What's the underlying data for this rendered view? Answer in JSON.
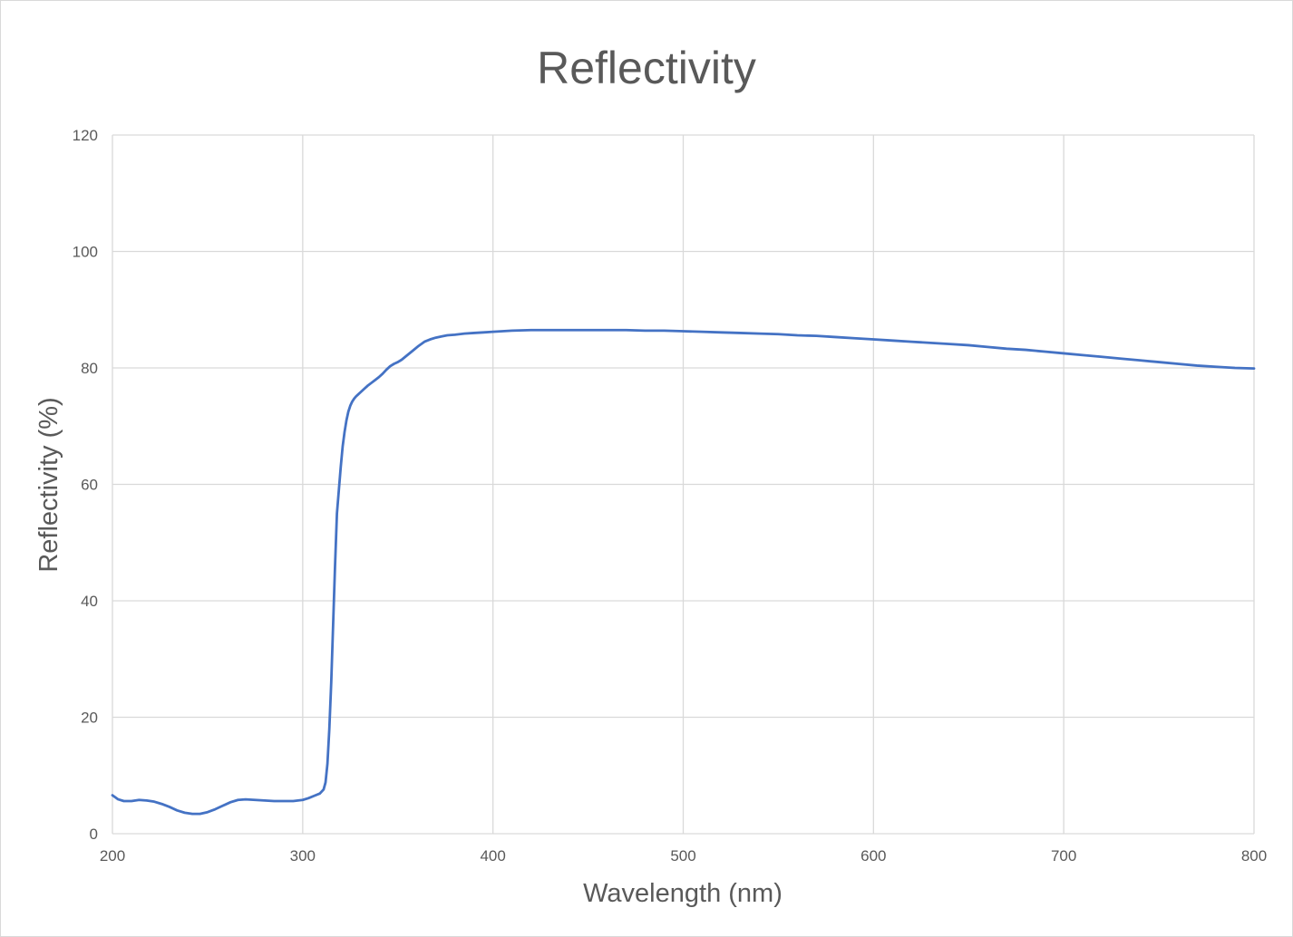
{
  "chart_data": {
    "type": "line",
    "title": "Reflectivity",
    "xlabel": "Wavelength (nm)",
    "ylabel": "Reflectivity (%)",
    "xlim": [
      200,
      800
    ],
    "ylim": [
      0,
      120
    ],
    "xticks": [
      "200",
      "300",
      "400",
      "500",
      "600",
      "700",
      "800"
    ],
    "yticks": [
      "0",
      "20",
      "40",
      "60",
      "80",
      "100",
      "120"
    ],
    "grid": true,
    "legend": "none",
    "line_color": "#4472C4",
    "series": [
      {
        "x": [
          200,
          203,
          206,
          210,
          214,
          218,
          222,
          226,
          230,
          234,
          238,
          242,
          246,
          250,
          254,
          258,
          262,
          266,
          270,
          275,
          280,
          285,
          290,
          295,
          300,
          303,
          306,
          309,
          311,
          312,
          313,
          314,
          315,
          316,
          317,
          318,
          319,
          320,
          321,
          322,
          323,
          324,
          325,
          326,
          327,
          328,
          329,
          330,
          332,
          334,
          336,
          338,
          340,
          342,
          344,
          346,
          348,
          350,
          352,
          355,
          358,
          361,
          364,
          367,
          370,
          373,
          376,
          380,
          385,
          390,
          395,
          400,
          410,
          420,
          430,
          440,
          450,
          460,
          470,
          480,
          490,
          500,
          510,
          520,
          530,
          540,
          550,
          560,
          570,
          580,
          590,
          600,
          610,
          620,
          630,
          640,
          650,
          660,
          670,
          680,
          690,
          700,
          710,
          720,
          730,
          740,
          750,
          760,
          770,
          780,
          790,
          800
        ],
        "y": [
          6.6,
          5.9,
          5.6,
          5.6,
          5.8,
          5.7,
          5.5,
          5.1,
          4.6,
          4.0,
          3.6,
          3.4,
          3.4,
          3.7,
          4.2,
          4.8,
          5.4,
          5.8,
          5.9,
          5.8,
          5.7,
          5.6,
          5.6,
          5.6,
          5.8,
          6.1,
          6.5,
          6.9,
          7.6,
          8.8,
          12,
          18,
          26,
          36,
          46,
          55,
          59,
          63,
          66.5,
          69,
          71,
          72.5,
          73.5,
          74.2,
          74.7,
          75.1,
          75.4,
          75.7,
          76.3,
          76.9,
          77.4,
          77.9,
          78.4,
          79.0,
          79.7,
          80.3,
          80.7,
          81.0,
          81.4,
          82.2,
          83.0,
          83.8,
          84.5,
          84.9,
          85.2,
          85.4,
          85.6,
          85.7,
          85.9,
          86.0,
          86.1,
          86.2,
          86.4,
          86.5,
          86.5,
          86.5,
          86.5,
          86.5,
          86.5,
          86.4,
          86.4,
          86.3,
          86.2,
          86.1,
          86.0,
          85.9,
          85.8,
          85.6,
          85.5,
          85.3,
          85.1,
          84.9,
          84.7,
          84.5,
          84.3,
          84.1,
          83.9,
          83.6,
          83.3,
          83.1,
          82.8,
          82.5,
          82.2,
          81.9,
          81.6,
          81.3,
          81.0,
          80.7,
          80.4,
          80.2,
          80.0,
          79.9
        ]
      }
    ]
  }
}
